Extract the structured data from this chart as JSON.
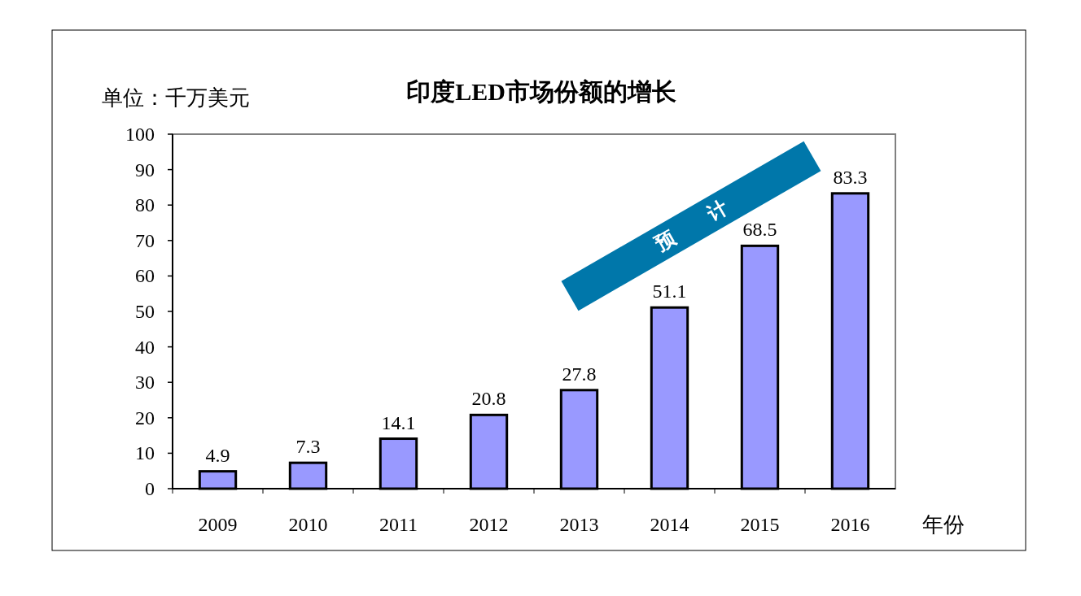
{
  "chart_data": {
    "type": "bar",
    "title": "印度LED市场份额的增长",
    "ylabel": "单位：千万美元",
    "xlabel": "年份",
    "categories": [
      "2009",
      "2010",
      "2011",
      "2012",
      "2013",
      "2014",
      "2015",
      "2016"
    ],
    "values": [
      4.9,
      7.3,
      14.1,
      20.8,
      27.8,
      51.1,
      68.5,
      83.3
    ],
    "color": "#9999ff",
    "data_labels": true,
    "ylim": [
      0,
      100
    ],
    "yticks": [
      0,
      10,
      20,
      30,
      40,
      50,
      60,
      70,
      80,
      90,
      100
    ],
    "grid": false,
    "annotations": [
      "预计"
    ]
  }
}
